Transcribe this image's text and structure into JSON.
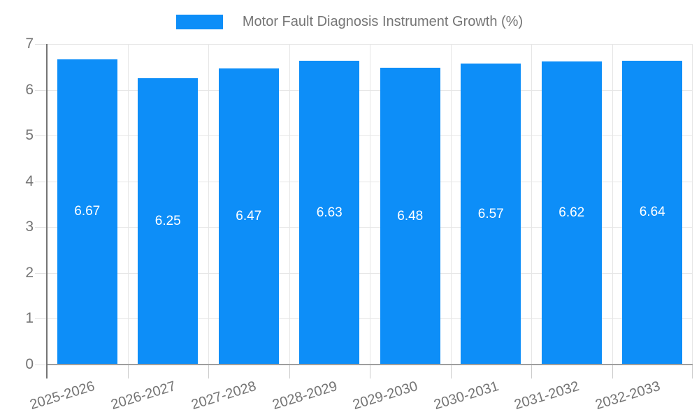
{
  "legend": {
    "label": "Motor Fault Diagnosis Instrument Growth (%)"
  },
  "colors": {
    "bar": "#0d8ef8",
    "grid": "#e6e6e6",
    "baseline": "#9e9e9e",
    "axis_line": "#757575",
    "axis_text": "#757575",
    "value_label": "#ffffff",
    "background": "#ffffff"
  },
  "chart_data": {
    "type": "bar",
    "title": "Motor Fault Diagnosis Instrument Growth (%)",
    "categories": [
      "2025-2026",
      "2026-2027",
      "2027-2028",
      "2028-2029",
      "2029-2030",
      "2030-2031",
      "2031-2032",
      "2032-2033"
    ],
    "values": [
      6.67,
      6.25,
      6.47,
      6.63,
      6.48,
      6.57,
      6.62,
      6.64
    ],
    "value_labels": [
      "6.67",
      "6.25",
      "6.47",
      "6.63",
      "6.48",
      "6.57",
      "6.62",
      "6.64"
    ],
    "xlabel": "",
    "ylabel": "",
    "ylim": [
      0,
      7
    ],
    "yticks": [
      0,
      1,
      2,
      3,
      4,
      5,
      6,
      7
    ],
    "grid": true,
    "legend_position": "top-center",
    "bar_color": "#0d8ef8",
    "value_label_position": "center-inside"
  }
}
